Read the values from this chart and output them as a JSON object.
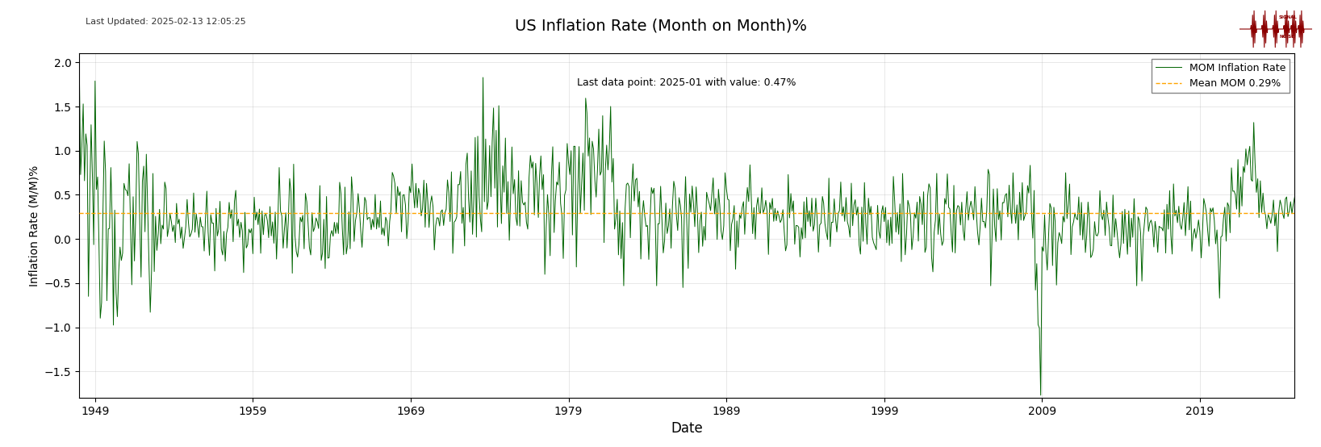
{
  "title": "US Inflation Rate (Month on Month)%",
  "subtitle": "Last data point: 2025-01 with value: 0.47%",
  "top_left_text": "Last Updated: 2025-02-13 12:05:25",
  "xlabel": "Date",
  "ylabel": "Inflation Rate (M/M)%",
  "line_color": "#006400",
  "mean_color": "#FFA500",
  "mean_value": 0.29,
  "legend_line": "MOM Inflation Rate",
  "legend_mean": "Mean MOM 0.29%",
  "background_color": "#ffffff",
  "ylim": [
    -1.8,
    2.1
  ],
  "tick_years": [
    1949,
    1959,
    1969,
    1979,
    1989,
    1999,
    2009,
    2019
  ]
}
